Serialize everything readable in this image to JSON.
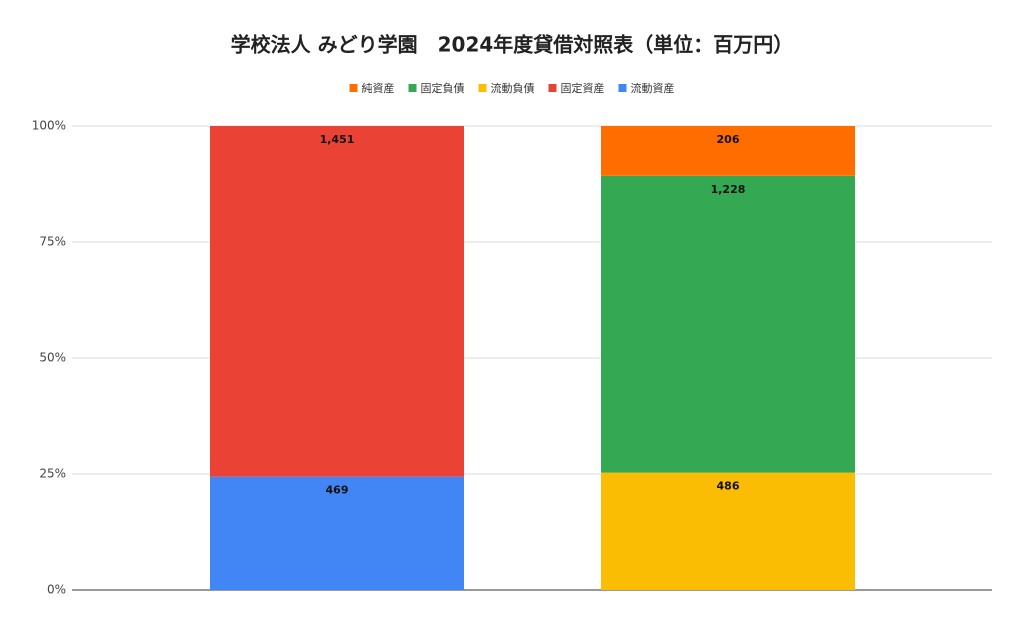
{
  "chart_data": {
    "type": "stacked-percent-bar",
    "title": "学校法人 みどり学園　2024年度貸借対照表（単位：百万円）",
    "categories": [
      null,
      null
    ],
    "series": [
      {
        "name": "純資産",
        "color": "#ff6d01",
        "values": [
          null,
          206
        ]
      },
      {
        "name": "固定負債",
        "color": "#34a853",
        "values": [
          null,
          1228
        ],
        "value_labels": [
          null,
          "1,228"
        ]
      },
      {
        "name": "流動負債",
        "color": "#fbbc04",
        "values": [
          null,
          486
        ]
      },
      {
        "name": "固定資産",
        "color": "#ea4335",
        "values": [
          1451,
          null
        ],
        "value_labels": [
          "1,451",
          null
        ]
      },
      {
        "name": "流動資産",
        "color": "#4285f4",
        "values": [
          469,
          null
        ]
      }
    ],
    "ylim": [
      0,
      100
    ],
    "yticks": [
      {
        "value": 0,
        "label": "0%"
      },
      {
        "value": 25,
        "label": "25%"
      },
      {
        "value": 50,
        "label": "50%"
      },
      {
        "value": 75,
        "label": "75%"
      },
      {
        "value": 100,
        "label": "100%"
      }
    ],
    "grid": true,
    "legend": "top"
  }
}
